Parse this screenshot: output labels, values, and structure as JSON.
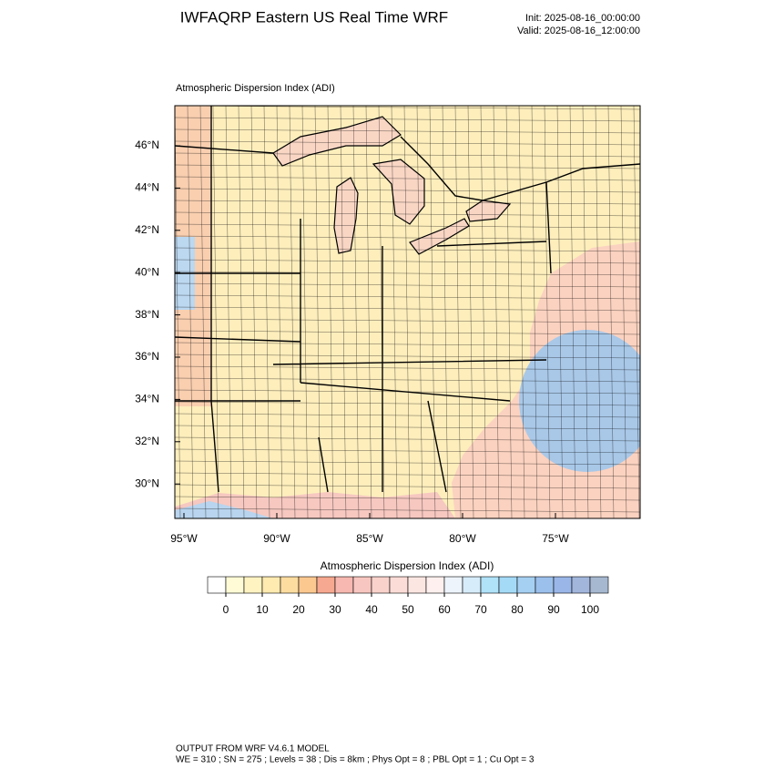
{
  "header": {
    "title": "IWFAQRP Eastern US Real Time WRF",
    "init": "Init: 2025-08-16_00:00:00",
    "valid": "Valid: 2025-08-16_12:00:00"
  },
  "map": {
    "title": "Atmospheric Dispersion Index   (ADI)",
    "lat_ticks": [
      {
        "value": 46,
        "label": "46°N"
      },
      {
        "value": 44,
        "label": "44°N"
      },
      {
        "value": 42,
        "label": "42°N"
      },
      {
        "value": 40,
        "label": "40°N"
      },
      {
        "value": 38,
        "label": "38°N"
      },
      {
        "value": 36,
        "label": "36°N"
      },
      {
        "value": 34,
        "label": "34°N"
      },
      {
        "value": 32,
        "label": "32°N"
      },
      {
        "value": 30,
        "label": "30°N"
      }
    ],
    "lon_ticks": [
      {
        "value": -95,
        "label": "95°W"
      },
      {
        "value": -90,
        "label": "90°W"
      },
      {
        "value": -85,
        "label": "85°W"
      },
      {
        "value": -80,
        "label": "80°W"
      },
      {
        "value": -75,
        "label": "75°W"
      }
    ]
  },
  "colorbar": {
    "title": "Atmospheric Dispersion Index (ADI)",
    "colors": [
      "#ffffff",
      "#fffbd6",
      "#fff3c2",
      "#ffeab0",
      "#fddca0",
      "#fbc890",
      "#f7a890",
      "#f6b8b0",
      "#f8c6c0",
      "#f9d2cc",
      "#fbdcd6",
      "#fce6e2",
      "#fdf0ee",
      "#eef4fc",
      "#d6ecfa",
      "#b0e2f8",
      "#a4daf6",
      "#a6d0f2",
      "#9cc0ec",
      "#9ab6e8",
      "#a2b6dc",
      "#a6b8d0"
    ],
    "ticks": [
      0,
      10,
      20,
      30,
      40,
      50,
      60,
      70,
      80,
      90,
      100
    ]
  },
  "footer": {
    "line1": "OUTPUT FROM WRF V4.6.1 MODEL",
    "line2": "WE = 310 ; SN = 275 ; Levels = 38 ; Dis = 8km ; Phys Opt = 8 ; PBL Opt = 1 ; Cu Opt = 3"
  }
}
